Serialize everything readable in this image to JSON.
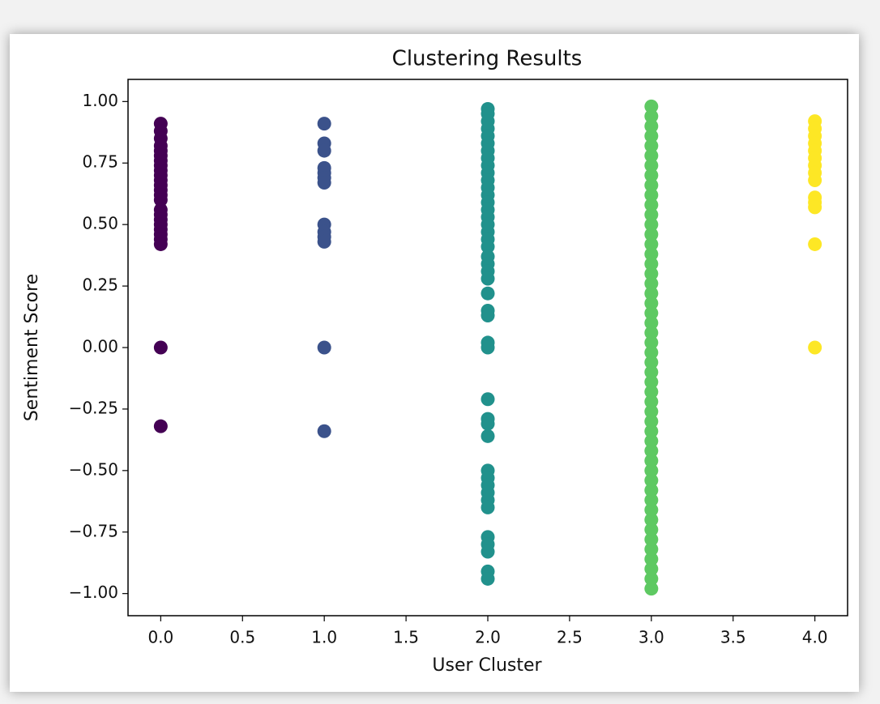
{
  "chart_data": {
    "type": "scatter",
    "title": "Clustering Results",
    "x_label": "User Cluster",
    "y_label": "Sentiment Score",
    "xlim": [
      -0.2,
      4.2
    ],
    "ylim": [
      -1.09,
      1.09
    ],
    "xticks": [
      {
        "value": 0,
        "label": "0.0"
      },
      {
        "value": 0.5,
        "label": "0.5"
      },
      {
        "value": 1,
        "label": "1.0"
      },
      {
        "value": 1.5,
        "label": "1.5"
      },
      {
        "value": 2,
        "label": "2.0"
      },
      {
        "value": 2.5,
        "label": "2.5"
      },
      {
        "value": 3,
        "label": "3.0"
      },
      {
        "value": 3.5,
        "label": "3.5"
      },
      {
        "value": 4,
        "label": "4.0"
      }
    ],
    "yticks": [
      {
        "value": -1,
        "label": "−1.00"
      },
      {
        "value": -0.75,
        "label": "−0.75"
      },
      {
        "value": -0.5,
        "label": "−0.50"
      },
      {
        "value": -0.25,
        "label": "−0.25"
      },
      {
        "value": 0,
        "label": "0.00"
      },
      {
        "value": 0.25,
        "label": "0.25"
      },
      {
        "value": 0.5,
        "label": "0.50"
      },
      {
        "value": 0.75,
        "label": "0.75"
      },
      {
        "value": 1,
        "label": "1.00"
      }
    ],
    "series": [
      {
        "color": "#440154",
        "x": [
          0,
          0,
          0,
          0,
          0,
          0,
          0,
          0,
          0,
          0,
          0,
          0,
          0,
          0,
          0,
          0,
          0,
          0,
          0,
          0,
          0,
          0,
          0,
          0,
          0
        ],
        "values": [
          0.91,
          0.88,
          0.85,
          0.82,
          0.8,
          0.78,
          0.76,
          0.74,
          0.72,
          0.7,
          0.68,
          0.66,
          0.64,
          0.62,
          0.6,
          0.56,
          0.54,
          0.52,
          0.5,
          0.48,
          0.46,
          0.44,
          0.42,
          0,
          -0.32
        ]
      },
      {
        "color": "#3b528b",
        "x": [
          1,
          1,
          1,
          1,
          1,
          1,
          1,
          1,
          1,
          1,
          1,
          1,
          1
        ],
        "values": [
          0.91,
          0.83,
          0.8,
          0.73,
          0.71,
          0.69,
          0.67,
          0.5,
          0.47,
          0.45,
          0.43,
          0,
          -0.34
        ]
      },
      {
        "color": "#21918c",
        "x": [
          2,
          2,
          2,
          2,
          2,
          2,
          2,
          2,
          2,
          2,
          2,
          2,
          2,
          2,
          2,
          2,
          2,
          2,
          2,
          2,
          2,
          2,
          2,
          2,
          2,
          2,
          2,
          2,
          2,
          2,
          2,
          2,
          2,
          2,
          2,
          2,
          2,
          2,
          2,
          2,
          2,
          2,
          2,
          2
        ],
        "values": [
          0.97,
          0.95,
          0.92,
          0.89,
          0.86,
          0.83,
          0.8,
          0.77,
          0.74,
          0.71,
          0.68,
          0.65,
          0.62,
          0.59,
          0.56,
          0.53,
          0.5,
          0.47,
          0.44,
          0.41,
          0.37,
          0.34,
          0.31,
          0.28,
          0.22,
          0.15,
          0.13,
          0.02,
          0,
          -0.21,
          -0.29,
          -0.31,
          -0.36,
          -0.5,
          -0.53,
          -0.56,
          -0.59,
          -0.62,
          -0.65,
          -0.77,
          -0.8,
          -0.83,
          -0.91,
          -0.94
        ]
      },
      {
        "color": "#5ec962",
        "x": [
          3,
          3,
          3,
          3,
          3,
          3,
          3,
          3,
          3,
          3,
          3,
          3,
          3,
          3,
          3,
          3,
          3,
          3,
          3,
          3,
          3,
          3,
          3,
          3,
          3,
          3,
          3,
          3,
          3,
          3,
          3,
          3,
          3,
          3,
          3,
          3,
          3,
          3,
          3,
          3,
          3,
          3,
          3,
          3,
          3,
          3,
          3,
          3,
          3,
          3
        ],
        "values": [
          -0.98,
          -0.94,
          -0.9,
          -0.86,
          -0.82,
          -0.78,
          -0.74,
          -0.7,
          -0.66,
          -0.62,
          -0.58,
          -0.54,
          -0.5,
          -0.46,
          -0.42,
          -0.38,
          -0.34,
          -0.3,
          -0.26,
          -0.22,
          -0.18,
          -0.14,
          -0.1,
          -0.06,
          -0.02,
          0.02,
          0.06,
          0.1,
          0.14,
          0.18,
          0.22,
          0.26,
          0.3,
          0.34,
          0.38,
          0.42,
          0.46,
          0.5,
          0.54,
          0.58,
          0.62,
          0.66,
          0.7,
          0.74,
          0.78,
          0.82,
          0.86,
          0.9,
          0.94,
          0.98
        ]
      },
      {
        "color": "#fde725",
        "x": [
          4,
          4,
          4,
          4,
          4,
          4,
          4,
          4,
          4,
          4,
          4,
          4,
          4,
          4
        ],
        "values": [
          0.92,
          0.89,
          0.86,
          0.83,
          0.8,
          0.77,
          0.74,
          0.71,
          0.68,
          0.61,
          0.59,
          0.57,
          0.42,
          0
        ]
      }
    ]
  }
}
